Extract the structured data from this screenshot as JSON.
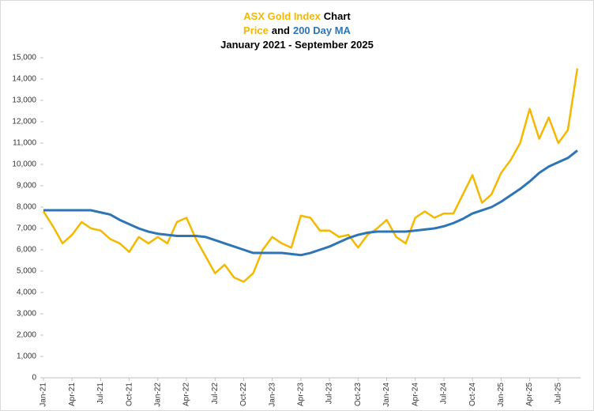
{
  "chart_data": {
    "type": "line",
    "title": [
      [
        {
          "text": "ASX Gold Index",
          "color": "#f5b800"
        },
        {
          "text": "Chart",
          "color": "#000000"
        }
      ],
      [
        {
          "text": "Price",
          "color": "#f5b800"
        },
        {
          "text": "and",
          "color": "#000000"
        },
        {
          "text": "200 Day MA",
          "color": "#2e75b6"
        }
      ],
      [
        {
          "text": "January 2021 - September 2025",
          "color": "#000000"
        }
      ]
    ],
    "categories": [
      "Jan-21",
      null,
      null,
      "Apr-21",
      null,
      null,
      "Jul-21",
      null,
      null,
      "Oct-21",
      null,
      null,
      "Jan-22",
      null,
      null,
      "Apr-22",
      null,
      null,
      "Jul-22",
      null,
      null,
      "Oct-22",
      null,
      null,
      "Jan-23",
      null,
      null,
      "Apr-23",
      null,
      null,
      "Jul-23",
      null,
      null,
      "Oct-23",
      null,
      null,
      "Jan-24",
      null,
      null,
      "Apr-24",
      null,
      null,
      "Jul-24",
      null,
      null,
      "Oct-24",
      null,
      null,
      "Jan-25",
      null,
      null,
      "Apr-25",
      null,
      null,
      "Jul-25",
      null,
      null
    ],
    "series": [
      {
        "name": "Price",
        "color": "#f5b800",
        "values": [
          7800,
          7100,
          6300,
          6700,
          7300,
          7000,
          6900,
          6500,
          6300,
          5900,
          6600,
          6300,
          6600,
          6300,
          7300,
          7500,
          6500,
          5700,
          4900,
          5300,
          4700,
          4500,
          4900,
          6000,
          6600,
          6300,
          6100,
          7600,
          7500,
          6900,
          6900,
          6600,
          6700,
          6100,
          6700,
          7000,
          7400,
          6600,
          6300,
          7500,
          7800,
          7500,
          7700,
          7700,
          8600,
          9500,
          8200,
          8600,
          9600,
          10200,
          11000,
          12600,
          11200,
          12200,
          11000,
          11600,
          14500
        ]
      },
      {
        "name": "200 Day MA",
        "color": "#2e75b6",
        "values": [
          7850,
          7850,
          7850,
          7850,
          7850,
          7850,
          7750,
          7650,
          7400,
          7200,
          7000,
          6850,
          6750,
          6700,
          6650,
          6650,
          6650,
          6600,
          6450,
          6300,
          6150,
          6000,
          5850,
          5850,
          5850,
          5850,
          5800,
          5750,
          5850,
          6000,
          6150,
          6350,
          6550,
          6700,
          6800,
          6850,
          6850,
          6850,
          6850,
          6900,
          6950,
          7000,
          7100,
          7250,
          7450,
          7700,
          7850,
          8000,
          8250,
          8550,
          8850,
          9200,
          9600,
          9900,
          10100,
          10300,
          10650
        ]
      }
    ],
    "ylim": [
      0,
      15000
    ],
    "yticks": [
      0,
      {
        "value": 1000,
        "label": "1,000"
      },
      {
        "value": 2000,
        "label": "2,000"
      },
      {
        "value": 3000,
        "label": "3,000"
      },
      {
        "value": 4000,
        "label": "4,000"
      },
      {
        "value": 5000,
        "label": "5,000"
      },
      {
        "value": 6000,
        "label": "6,000"
      },
      {
        "value": 7000,
        "label": "7,000"
      },
      {
        "value": 8000,
        "label": "8,000"
      },
      {
        "value": 9000,
        "label": "9,000"
      },
      {
        "value": 10000,
        "label": "10,000"
      },
      {
        "value": 11000,
        "label": "11,000"
      },
      {
        "value": 12000,
        "label": "12,000"
      },
      {
        "value": 13000,
        "label": "13,000"
      },
      {
        "value": 14000,
        "label": "14,000"
      },
      {
        "value": 15000,
        "label": "15,000"
      }
    ],
    "grid": false
  }
}
